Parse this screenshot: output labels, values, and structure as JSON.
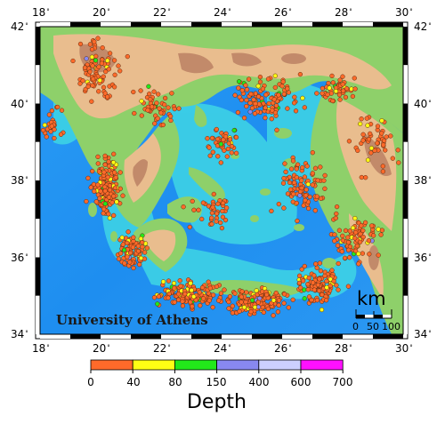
{
  "map": {
    "lon_ticks": [
      "18",
      "20",
      "22",
      "24",
      "26",
      "28",
      "30"
    ],
    "lat_ticks": [
      "42",
      "40",
      "38",
      "36",
      "34"
    ],
    "lon_range": [
      18,
      30
    ],
    "lat_range": [
      34,
      42
    ],
    "watermark": "University of Athens",
    "scale_bar": {
      "unit": "km",
      "labels": [
        "0",
        "50",
        "100"
      ]
    },
    "colors": {
      "deep_sea": "#1e90ff",
      "shallow_sea": "#3fd2e8",
      "lowland": "#8fd06a",
      "highland": "#e7b98a",
      "mountain": "#c48c6c",
      "event_shallow": "#f4602a"
    }
  },
  "legend": {
    "title": "Depth",
    "bins": [
      {
        "from": "0",
        "to": "40",
        "color": "#ff6a2a"
      },
      {
        "from": "40",
        "to": "80",
        "color": "#ffff14"
      },
      {
        "from": "80",
        "to": "150",
        "color": "#22e81a"
      },
      {
        "from": "150",
        "to": "400",
        "color": "#8888f0"
      },
      {
        "from": "400",
        "to": "600",
        "color": "#ccd0ff"
      },
      {
        "from": "600",
        "to": "700",
        "color": "#ff10ff"
      }
    ],
    "tick_labels": [
      "0",
      "40",
      "80",
      "150",
      "400",
      "600",
      "700"
    ]
  }
}
